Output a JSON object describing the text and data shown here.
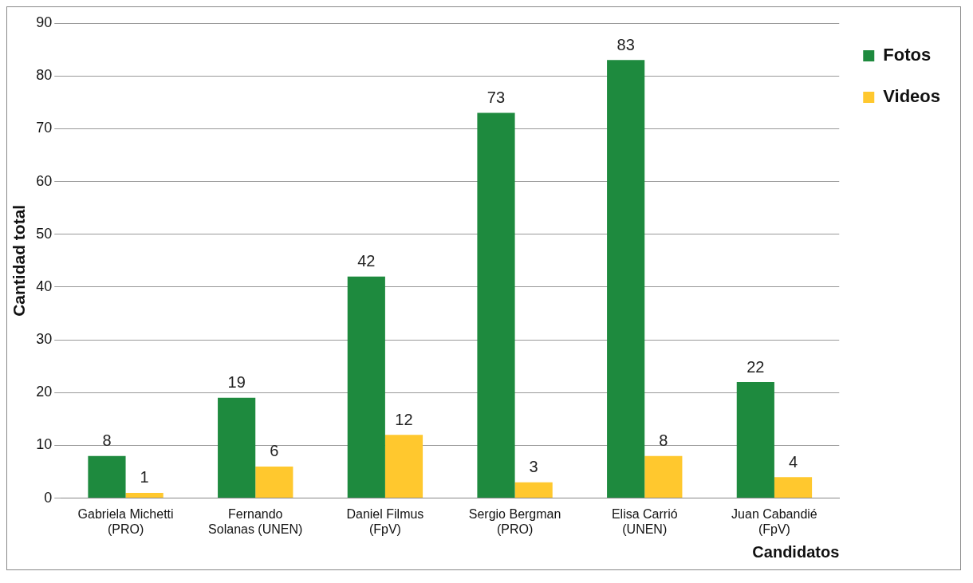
{
  "chart_data": {
    "type": "bar",
    "xlabel": "Candidatos",
    "ylabel": "Cantidad total",
    "categories": [
      "Gabriela Michetti\n(PRO)",
      "Fernando\nSolanas (UNEN)",
      "Daniel Filmus\n(FpV)",
      "Sergio Bergman\n(PRO)",
      "Elisa Carrió\n(UNEN)",
      "Juan Cabandié\n(FpV)"
    ],
    "series": [
      {
        "name": "Fotos",
        "color": "#1e8a3e",
        "values": [
          8,
          19,
          42,
          73,
          83,
          22
        ]
      },
      {
        "name": "Videos",
        "color": "#ffc82e",
        "values": [
          1,
          6,
          12,
          3,
          8,
          4
        ]
      }
    ],
    "ylim": [
      0,
      90
    ],
    "yticks": [
      0,
      10,
      20,
      30,
      40,
      50,
      60,
      70,
      80,
      90
    ],
    "grid": "y",
    "legend": "top right",
    "data_labels": true
  }
}
